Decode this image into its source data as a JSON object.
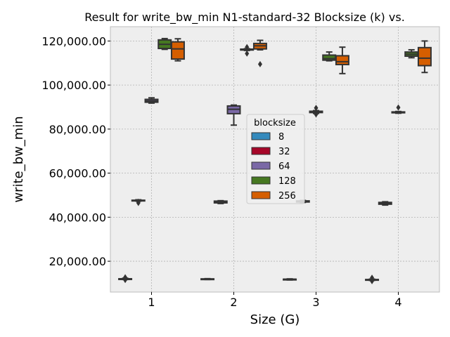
{
  "chart_data": {
    "type": "box",
    "title": "Result for write_bw_min N1-standard-32 Blocksize (k) vs.",
    "xlabel": "Size (G)",
    "ylabel": "write_bw_min",
    "categories": [
      "1",
      "2",
      "3",
      "4"
    ],
    "ylim": [
      6000,
      126500
    ],
    "yticks": [
      20000,
      40000,
      60000,
      80000,
      100000,
      120000
    ],
    "ytick_labels": [
      "20,000.00",
      "40,000.00",
      "60,000.00",
      "80,000.00",
      "100,000.00",
      "120,000.00"
    ],
    "grid": true,
    "legend": {
      "title": "blocksize",
      "placement": "center"
    },
    "series": [
      {
        "name": "8",
        "color": "#348ABD",
        "boxes": [
          {
            "min": 11700,
            "q1": 11900,
            "median": 12000,
            "q3": 12050,
            "max": 12300,
            "outliers": [
              11500,
              12700
            ]
          },
          {
            "min": 11700,
            "q1": 11850,
            "median": 11900,
            "q3": 12000,
            "max": 12100,
            "outliers": []
          },
          {
            "min": 11500,
            "q1": 11700,
            "median": 11800,
            "q3": 11850,
            "max": 12000,
            "outliers": []
          },
          {
            "min": 11300,
            "q1": 11500,
            "median": 11600,
            "q3": 11700,
            "max": 11900,
            "outliers": [
              11000,
              12500
            ]
          }
        ]
      },
      {
        "name": "32",
        "color": "#A60628",
        "boxes": [
          {
            "min": 47300,
            "q1": 47500,
            "median": 47600,
            "q3": 47700,
            "max": 47900,
            "outliers": [
              46500,
              47000
            ]
          },
          {
            "min": 46200,
            "q1": 46500,
            "median": 46800,
            "q3": 47300,
            "max": 47500,
            "outliers": []
          },
          {
            "min": 46700,
            "q1": 46900,
            "median": 47100,
            "q3": 47400,
            "max": 47600,
            "outliers": []
          },
          {
            "min": 45500,
            "q1": 45900,
            "median": 46200,
            "q3": 46700,
            "max": 47000,
            "outliers": []
          }
        ]
      },
      {
        "name": "64",
        "color": "#7A68A6",
        "boxes": [
          {
            "min": 91800,
            "q1": 92200,
            "median": 92800,
            "q3": 93500,
            "max": 94200,
            "outliers": []
          },
          {
            "min": 81800,
            "q1": 87000,
            "median": 89000,
            "q3": 90500,
            "max": 90900,
            "outliers": []
          },
          {
            "min": 87100,
            "q1": 87500,
            "median": 87800,
            "q3": 88100,
            "max": 88400,
            "outliers": [
              86700,
              89600
            ]
          },
          {
            "min": 87200,
            "q1": 87400,
            "median": 87600,
            "q3": 87800,
            "max": 88000,
            "outliers": [
              89800
            ]
          }
        ]
      },
      {
        "name": "128",
        "color": "#467821",
        "boxes": [
          {
            "min": 116200,
            "q1": 116600,
            "median": 118500,
            "q3": 120500,
            "max": 121100,
            "outliers": []
          },
          {
            "min": 115700,
            "q1": 115900,
            "median": 116100,
            "q3": 116300,
            "max": 116500,
            "outliers": [
              114300,
              117200
            ]
          },
          {
            "min": 111000,
            "q1": 111300,
            "median": 112000,
            "q3": 113600,
            "max": 115000,
            "outliers": []
          },
          {
            "min": 112400,
            "q1": 113100,
            "median": 114000,
            "q3": 115000,
            "max": 116000,
            "outliers": []
          }
        ]
      },
      {
        "name": "256",
        "color": "#D55E00",
        "boxes": [
          {
            "min": 111000,
            "q1": 111800,
            "median": 116400,
            "q3": 119600,
            "max": 121000,
            "outliers": []
          },
          {
            "min": 116000,
            "q1": 116400,
            "median": 117800,
            "q3": 118900,
            "max": 120300,
            "outliers": [
              109500
            ]
          },
          {
            "min": 105200,
            "q1": 109300,
            "median": 110600,
            "q3": 113300,
            "max": 117200,
            "outliers": []
          },
          {
            "min": 105700,
            "q1": 108800,
            "median": 112200,
            "q3": 117000,
            "max": 120000,
            "outliers": []
          }
        ]
      }
    ]
  }
}
